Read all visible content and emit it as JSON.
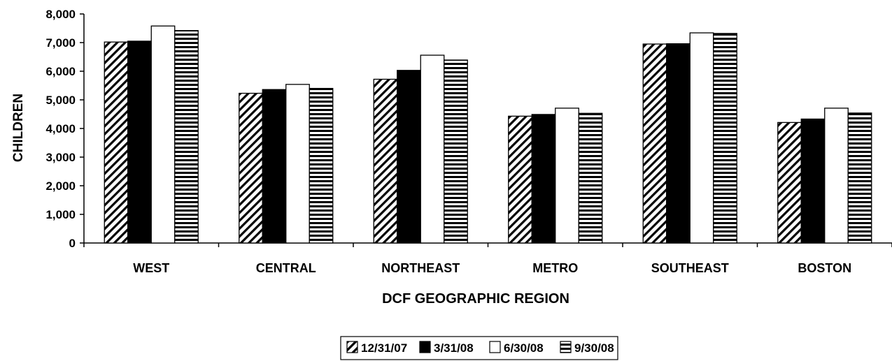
{
  "chart_data": {
    "type": "bar",
    "title": "",
    "xlabel": "DCF GEOGRAPHIC REGION",
    "ylabel": "CHILDREN",
    "ylim": [
      0,
      8000
    ],
    "yticks": [
      0,
      1000,
      2000,
      3000,
      4000,
      5000,
      6000,
      7000,
      8000
    ],
    "ytick_labels": [
      "0",
      "1,000",
      "2,000",
      "3,000",
      "4,000",
      "5,000",
      "6,000",
      "7,000",
      "8,000"
    ],
    "categories": [
      "WEST",
      "CENTRAL",
      "NORTHEAST",
      "METRO",
      "SOUTHEAST",
      "BOSTON"
    ],
    "series": [
      {
        "name": "12/31/07",
        "pattern": "diagonal",
        "values": [
          7020,
          5230,
          5720,
          4430,
          6950,
          4210
        ]
      },
      {
        "name": "3/31/08",
        "pattern": "solid",
        "values": [
          7050,
          5360,
          6030,
          4490,
          6960,
          4330
        ]
      },
      {
        "name": "6/30/08",
        "pattern": "white",
        "values": [
          7580,
          5540,
          6560,
          4710,
          7340,
          4710
        ]
      },
      {
        "name": "9/30/08",
        "pattern": "horizontal",
        "values": [
          7420,
          5400,
          6390,
          4530,
          7320,
          4540
        ]
      }
    ],
    "grid": false,
    "legend_position": "bottom"
  }
}
